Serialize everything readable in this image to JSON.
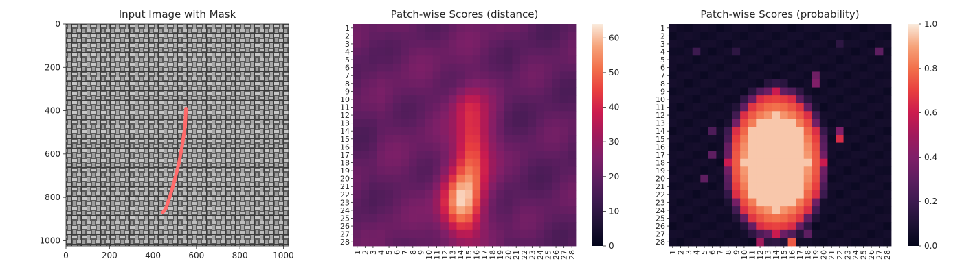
{
  "panels": [
    {
      "title": "Input Image with Mask",
      "x_ticks": [
        "0",
        "200",
        "400",
        "600",
        "800",
        "1000"
      ],
      "y_ticks": [
        "0",
        "200",
        "400",
        "600",
        "800",
        "1000"
      ]
    },
    {
      "title": "Patch-wise Scores (distance)"
    },
    {
      "title": "Patch-wise Scores (probability)"
    }
  ],
  "image_panel": {
    "type": "image",
    "extent": [
      0,
      1024
    ],
    "background": "grayscale woven fabric texture",
    "mask_color": "#ff6a6a",
    "mask_polyline": [
      [
        552,
        390
      ],
      [
        548,
        470
      ],
      [
        535,
        560
      ],
      [
        520,
        640
      ],
      [
        500,
        720
      ],
      [
        480,
        790
      ],
      [
        460,
        850
      ],
      [
        445,
        870
      ]
    ]
  },
  "chart_data": [
    {
      "type": "heatmap",
      "title": "Patch-wise Scores (distance)",
      "grid_size": 28,
      "row_labels": [
        "1",
        "2",
        "3",
        "4",
        "5",
        "6",
        "7",
        "8",
        "9",
        "10",
        "11",
        "12",
        "13",
        "14",
        "15",
        "16",
        "17",
        "18",
        "19",
        "20",
        "21",
        "22",
        "23",
        "24",
        "25",
        "26",
        "27",
        "28"
      ],
      "col_labels": [
        "1",
        "2",
        "3",
        "4",
        "5",
        "6",
        "7",
        "8",
        "9",
        "10",
        "11",
        "12",
        "13",
        "14",
        "15",
        "16",
        "17",
        "18",
        "19",
        "20",
        "21",
        "22",
        "23",
        "24",
        "25",
        "26",
        "27",
        "28"
      ],
      "colorbar": {
        "min": 0,
        "max": 64,
        "ticks": [
          "0",
          "10",
          "20",
          "30",
          "40",
          "50",
          "60"
        ]
      },
      "background_value": 21,
      "blobs": [
        {
          "row": 23.5,
          "col": 14.0,
          "sigma_r": 2.8,
          "sigma_c": 1.8,
          "amplitude": 34
        },
        {
          "row": 16.5,
          "col": 15.5,
          "sigma_r": 4.2,
          "sigma_c": 1.6,
          "amplitude": 28
        },
        {
          "row": 10.5,
          "col": 14.5,
          "sigma_r": 1.5,
          "sigma_c": 1.5,
          "amplitude": 8
        }
      ],
      "peak": {
        "row": 24,
        "col": 14,
        "value": 64
      }
    },
    {
      "type": "heatmap",
      "title": "Patch-wise Scores (probability)",
      "grid_size": 28,
      "row_labels": [
        "1",
        "2",
        "3",
        "4",
        "5",
        "6",
        "7",
        "8",
        "9",
        "10",
        "11",
        "12",
        "13",
        "14",
        "15",
        "16",
        "17",
        "18",
        "19",
        "20",
        "21",
        "22",
        "23",
        "24",
        "25",
        "26",
        "27",
        "28"
      ],
      "col_labels": [
        "1",
        "2",
        "3",
        "4",
        "5",
        "6",
        "7",
        "8",
        "9",
        "10",
        "11",
        "12",
        "13",
        "14",
        "15",
        "16",
        "17",
        "18",
        "19",
        "20",
        "21",
        "22",
        "23",
        "24",
        "25",
        "26",
        "27",
        "28"
      ],
      "colorbar": {
        "min": 0.0,
        "max": 1.0,
        "ticks": [
          "0.0",
          "0.2",
          "0.4",
          "0.6",
          "0.8",
          "1.0"
        ]
      },
      "background_value": 0.05,
      "region": {
        "row_start": 9,
        "row_end": 27,
        "col_start": 8,
        "col_end": 20
      },
      "core_value": 0.95,
      "edge_value": 0.6,
      "scatter": [
        {
          "row": 4,
          "col": 4,
          "value": 0.2
        },
        {
          "row": 4,
          "col": 9,
          "value": 0.15
        },
        {
          "row": 4,
          "col": 27,
          "value": 0.3
        },
        {
          "row": 3,
          "col": 22,
          "value": 0.15
        },
        {
          "row": 7,
          "col": 19,
          "value": 0.35
        },
        {
          "row": 8,
          "col": 19,
          "value": 0.4
        },
        {
          "row": 15,
          "col": 22,
          "value": 0.65
        },
        {
          "row": 14,
          "col": 22,
          "value": 0.4
        },
        {
          "row": 14,
          "col": 6,
          "value": 0.25
        },
        {
          "row": 17,
          "col": 6,
          "value": 0.3
        },
        {
          "row": 20,
          "col": 5,
          "value": 0.3
        },
        {
          "row": 28,
          "col": 12,
          "value": 0.5
        },
        {
          "row": 28,
          "col": 16,
          "value": 0.75
        },
        {
          "row": 27,
          "col": 18,
          "value": 0.3
        }
      ]
    }
  ]
}
